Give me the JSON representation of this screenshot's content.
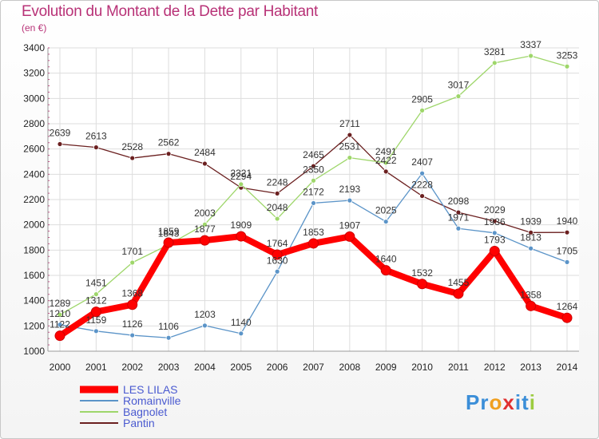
{
  "chart_data": {
    "type": "line",
    "title": "Evolution du Montant de la Dette par Habitant",
    "subtitle": "(en €)",
    "categories": [
      "2000",
      "2001",
      "2002",
      "2003",
      "2004",
      "2005",
      "2006",
      "2007",
      "2008",
      "2009",
      "2010",
      "2011",
      "2012",
      "2013",
      "2014"
    ],
    "ylim": [
      1000,
      3400
    ],
    "yticks": [
      1000,
      1200,
      1400,
      1600,
      1800,
      2000,
      2200,
      2400,
      2600,
      2800,
      3000,
      3200,
      3400
    ],
    "grid": true,
    "legend_position": "bottom-left",
    "series": [
      {
        "name": "LES LILAS",
        "color": "#ff0000",
        "values": [
          1122,
          1312,
          1368,
          1859,
          1877,
          1909,
          1764,
          1853,
          1907,
          1640,
          1532,
          1455,
          1793,
          1358,
          1264
        ]
      },
      {
        "name": "Romainville",
        "color": "#5b94c8",
        "values": [
          1210,
          1159,
          1126,
          1106,
          1203,
          1140,
          1630,
          2172,
          2193,
          2025,
          2407,
          1971,
          1936,
          1813,
          1705
        ]
      },
      {
        "name": "Bagnolet",
        "color": "#9ed66a",
        "values": [
          1289,
          1451,
          1701,
          1843,
          2003,
          2321,
          2048,
          2350,
          2531,
          2491,
          2905,
          3017,
          3281,
          3337,
          3253
        ]
      },
      {
        "name": "Pantin",
        "color": "#6b2020",
        "values": [
          2639,
          2613,
          2528,
          2562,
          2484,
          2294,
          2248,
          2465,
          2711,
          2422,
          2228,
          2098,
          2029,
          1939,
          1940
        ]
      }
    ]
  },
  "logo": {
    "letters": [
      "P",
      "r",
      "o",
      "x",
      "i",
      "t",
      "i"
    ],
    "colors": [
      "#3b8ed8",
      "#3b8ed8",
      "#f0a020",
      "#e03030",
      "#3b8ed8",
      "#3b8ed8",
      "#9ccc40"
    ]
  }
}
